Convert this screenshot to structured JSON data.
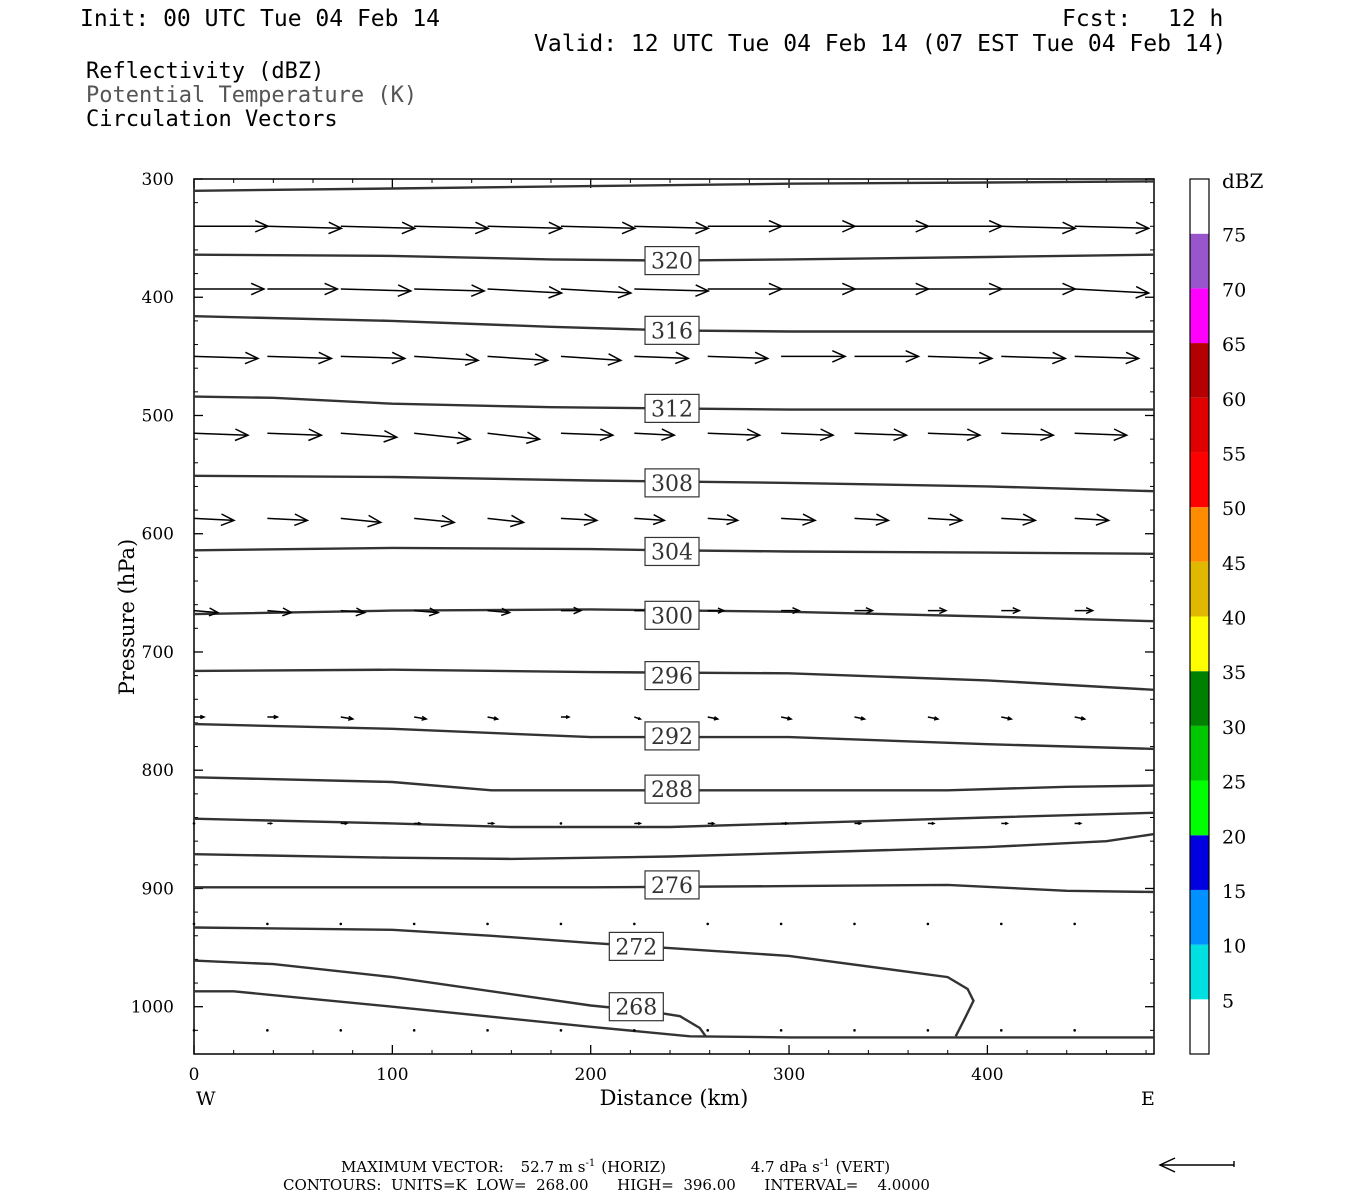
{
  "header": {
    "init": "Init: 00 UTC Tue 04 Feb 14",
    "fcst_label": "Fcst:",
    "fcst_value": "12 h",
    "valid": "Valid: 12 UTC Tue 04 Feb 14 (07 EST Tue 04 Feb 14)"
  },
  "fields": [
    "Reflectivity (dBZ)",
    "Potential Temperature (K)",
    "Circulation Vectors"
  ],
  "colors": {
    "text": "#000000",
    "theta_label": "#555555",
    "contour": "#333333"
  },
  "chart_data": {
    "type": "cross-section",
    "xlabel": "Distance (km)",
    "ylabel": "Pressure (hPa)",
    "xlim": [
      0,
      484
    ],
    "ylim": [
      1040,
      300
    ],
    "x_ticks": [
      0,
      100,
      200,
      300,
      400
    ],
    "y_ticks": [
      300,
      400,
      500,
      600,
      700,
      800,
      900,
      1000
    ],
    "x_end_labels": {
      "left": "W",
      "right": "E"
    },
    "theta_contours": [
      {
        "label": "",
        "points": [
          [
            0,
            310
          ],
          [
            100,
            308
          ],
          [
            200,
            306
          ],
          [
            300,
            304
          ],
          [
            400,
            303
          ],
          [
            484,
            302
          ]
        ]
      },
      {
        "label": "320",
        "points": [
          [
            0,
            364
          ],
          [
            100,
            365
          ],
          [
            180,
            368
          ],
          [
            240,
            369
          ],
          [
            300,
            368
          ],
          [
            400,
            366
          ],
          [
            484,
            364
          ]
        ]
      },
      {
        "label": "316",
        "points": [
          [
            0,
            416
          ],
          [
            100,
            420
          ],
          [
            180,
            425
          ],
          [
            240,
            428
          ],
          [
            300,
            429
          ],
          [
            400,
            429
          ],
          [
            484,
            429
          ]
        ]
      },
      {
        "label": "312",
        "points": [
          [
            0,
            484
          ],
          [
            40,
            485
          ],
          [
            100,
            490
          ],
          [
            180,
            493
          ],
          [
            240,
            494
          ],
          [
            300,
            495
          ],
          [
            400,
            495
          ],
          [
            484,
            495
          ]
        ]
      },
      {
        "label": "308",
        "points": [
          [
            0,
            551
          ],
          [
            100,
            552
          ],
          [
            200,
            555
          ],
          [
            300,
            557
          ],
          [
            400,
            560
          ],
          [
            484,
            564
          ]
        ]
      },
      {
        "label": "304",
        "points": [
          [
            0,
            614
          ],
          [
            100,
            612
          ],
          [
            200,
            613
          ],
          [
            240,
            614
          ],
          [
            300,
            615
          ],
          [
            400,
            616
          ],
          [
            484,
            617
          ]
        ]
      },
      {
        "label": "300",
        "points": [
          [
            0,
            668
          ],
          [
            100,
            665
          ],
          [
            200,
            664
          ],
          [
            300,
            666
          ],
          [
            400,
            670
          ],
          [
            484,
            674
          ]
        ]
      },
      {
        "label": "296",
        "points": [
          [
            0,
            716
          ],
          [
            100,
            715
          ],
          [
            200,
            717
          ],
          [
            300,
            718
          ],
          [
            400,
            724
          ],
          [
            484,
            732
          ]
        ]
      },
      {
        "label": "292",
        "points": [
          [
            0,
            761
          ],
          [
            100,
            765
          ],
          [
            200,
            772
          ],
          [
            300,
            772
          ],
          [
            400,
            778
          ],
          [
            484,
            782
          ]
        ]
      },
      {
        "label": "288",
        "points": [
          [
            0,
            806
          ],
          [
            100,
            810
          ],
          [
            150,
            817
          ],
          [
            200,
            817
          ],
          [
            300,
            817
          ],
          [
            380,
            817
          ],
          [
            440,
            814
          ],
          [
            484,
            813
          ]
        ]
      },
      {
        "label": "",
        "points": [
          [
            0,
            841
          ],
          [
            100,
            845
          ],
          [
            160,
            848
          ],
          [
            240,
            848
          ],
          [
            300,
            845
          ],
          [
            400,
            840
          ],
          [
            484,
            836
          ]
        ]
      },
      {
        "label": "",
        "points": [
          [
            0,
            871
          ],
          [
            100,
            874
          ],
          [
            160,
            875
          ],
          [
            240,
            873
          ],
          [
            300,
            870
          ],
          [
            400,
            865
          ],
          [
            460,
            860
          ],
          [
            484,
            854
          ]
        ]
      },
      {
        "label": "276",
        "points": [
          [
            0,
            899
          ],
          [
            100,
            899
          ],
          [
            200,
            899
          ],
          [
            300,
            898
          ],
          [
            380,
            897
          ],
          [
            440,
            902
          ],
          [
            484,
            903
          ]
        ]
      },
      {
        "label": "272",
        "points": [
          [
            0,
            933
          ],
          [
            100,
            935
          ],
          [
            150,
            940
          ],
          [
            200,
            946
          ],
          [
            300,
            957
          ],
          [
            380,
            975
          ],
          [
            390,
            985
          ],
          [
            393,
            995
          ],
          [
            388,
            1012
          ],
          [
            384,
            1025
          ]
        ]
      },
      {
        "label": "268",
        "points": [
          [
            0,
            961
          ],
          [
            40,
            964
          ],
          [
            100,
            975
          ],
          [
            200,
            999
          ],
          [
            230,
            1004
          ],
          [
            245,
            1008
          ],
          [
            255,
            1018
          ],
          [
            258,
            1025
          ]
        ]
      },
      {
        "label": "",
        "points": [
          [
            0,
            987
          ],
          [
            20,
            987
          ],
          [
            100,
            1000
          ],
          [
            200,
            1017
          ],
          [
            250,
            1025
          ],
          [
            300,
            1026
          ],
          [
            400,
            1026
          ],
          [
            484,
            1026
          ]
        ]
      }
    ],
    "contour_label_positions": {
      "320": [
        241,
        369
      ],
      "316": [
        241,
        428
      ],
      "312": [
        241,
        494
      ],
      "308": [
        241,
        557
      ],
      "304": [
        241,
        615
      ],
      "300": [
        241,
        669
      ],
      "296": [
        241,
        720
      ],
      "292": [
        241,
        771
      ],
      "288": [
        241,
        816
      ],
      "276": [
        241,
        897
      ],
      "272": [
        223,
        949
      ],
      "268": [
        223,
        1000
      ]
    },
    "vector_rows": [
      {
        "p": 340,
        "x": [
          0,
          37,
          74,
          111,
          148,
          185,
          222,
          259,
          296,
          333,
          370,
          407,
          444
        ],
        "dx": [
          37,
          37,
          37,
          37,
          37,
          37,
          37,
          37,
          37,
          37,
          37,
          37,
          37
        ],
        "dp": [
          0,
          1,
          1,
          1,
          1,
          1,
          1,
          0,
          0,
          0,
          0,
          1,
          1
        ]
      },
      {
        "p": 393,
        "x": [
          0,
          37,
          74,
          111,
          148,
          185,
          222,
          259,
          296,
          333,
          370,
          407,
          444
        ],
        "dx": [
          35,
          35,
          35,
          35,
          37,
          35,
          37,
          37,
          37,
          37,
          37,
          37,
          37
        ],
        "dp": [
          0,
          0,
          1,
          1,
          2,
          2,
          1,
          0,
          0,
          0,
          0,
          0,
          2
        ]
      },
      {
        "p": 450,
        "x": [
          0,
          37,
          74,
          111,
          148,
          185,
          222,
          259,
          296,
          333,
          370,
          407,
          444
        ],
        "dx": [
          32,
          32,
          32,
          32,
          30,
          30,
          27,
          30,
          32,
          32,
          32,
          32,
          32
        ],
        "dp": [
          1,
          1,
          1,
          2,
          2,
          2,
          1,
          1,
          0,
          0,
          1,
          1,
          1
        ]
      },
      {
        "p": 515,
        "x": [
          0,
          37,
          74,
          111,
          148,
          185,
          222,
          259,
          296,
          333,
          370,
          407,
          444
        ],
        "dx": [
          27,
          27,
          28,
          28,
          26,
          26,
          20,
          26,
          26,
          26,
          26,
          26,
          26
        ],
        "dp": [
          1,
          1,
          2,
          3,
          3,
          1,
          1,
          1,
          1,
          1,
          1,
          1,
          1
        ]
      },
      {
        "p": 587,
        "x": [
          0,
          37,
          74,
          111,
          148,
          185,
          222,
          259,
          296,
          333,
          370,
          407,
          444
        ],
        "dx": [
          20,
          20,
          20,
          20,
          18,
          18,
          15,
          15,
          17,
          17,
          17,
          17,
          17
        ],
        "dp": [
          1,
          1,
          2,
          2,
          2,
          1,
          1,
          1,
          1,
          1,
          1,
          1,
          1
        ]
      },
      {
        "p": 665,
        "x": [
          0,
          37,
          74,
          111,
          148,
          185,
          222,
          259,
          296,
          333,
          370,
          407,
          444
        ],
        "dx": [
          12,
          12,
          12,
          12,
          11,
          10,
          8,
          8,
          9,
          9,
          9,
          9,
          9
        ],
        "dp": [
          1,
          1,
          1,
          1,
          1,
          0,
          0,
          0,
          0,
          0,
          0,
          0,
          0
        ]
      },
      {
        "p": 755,
        "x": [
          0,
          37,
          74,
          111,
          148,
          185,
          222,
          259,
          296,
          333,
          370,
          407,
          444
        ],
        "dx": [
          5,
          5,
          6,
          6,
          5,
          4,
          3,
          5,
          5,
          5,
          5,
          5,
          5
        ],
        "dp": [
          0,
          0,
          1,
          1,
          1,
          0,
          1,
          1,
          1,
          1,
          1,
          1,
          1
        ]
      },
      {
        "p": 845,
        "x": [
          0,
          37,
          74,
          111,
          148,
          185,
          222,
          259,
          296,
          333,
          370,
          407,
          444
        ],
        "dx": [
          1,
          2,
          3,
          3,
          3,
          0,
          3,
          3,
          3,
          3,
          3,
          3,
          3
        ],
        "dp": [
          0,
          0,
          0,
          0,
          0,
          0,
          0,
          0,
          0,
          0,
          0,
          0,
          0
        ]
      },
      {
        "p": 930,
        "x": [
          0,
          37,
          74,
          111,
          148,
          185,
          222,
          259,
          296,
          333,
          370,
          407,
          444
        ],
        "dx": [
          0,
          1,
          1,
          1,
          0,
          0,
          0,
          0,
          0,
          0,
          0,
          0,
          1
        ],
        "dp": [
          0,
          0,
          0,
          0,
          0,
          0,
          0,
          0,
          0,
          0,
          0,
          0,
          0
        ]
      },
      {
        "p": 1020,
        "x": [
          0,
          37,
          74,
          111,
          148,
          185,
          222,
          259,
          296,
          333,
          370,
          407,
          444
        ],
        "dx": [
          0,
          1,
          1,
          1,
          0,
          0,
          0,
          0,
          0,
          0,
          0,
          0,
          1
        ],
        "dp": [
          0,
          0,
          0,
          0,
          0,
          0,
          0,
          0,
          0,
          0,
          0,
          0,
          0
        ]
      }
    ],
    "colorbar": {
      "title": "dBZ",
      "levels": [
        "5",
        "10",
        "15",
        "20",
        "25",
        "30",
        "35",
        "40",
        "45",
        "50",
        "55",
        "60",
        "65",
        "70",
        "75"
      ],
      "colors": [
        "#ffffff",
        "#00e0e0",
        "#0090ff",
        "#0000e0",
        "#00ff00",
        "#00c800",
        "#008000",
        "#ffff00",
        "#e0b800",
        "#ff8c00",
        "#ff0000",
        "#e00000",
        "#b40000",
        "#ff00ff",
        "#9955cc",
        "#ffffff"
      ]
    }
  },
  "footer": {
    "max_vector_label": "MAXIMUM VECTOR:",
    "horiz_value": "52.7 m s",
    "horiz_sup": "-1",
    "horiz_tag": "(HORIZ)",
    "vert_value": "4.7 dPa s",
    "vert_sup": "-1",
    "vert_tag": "(VERT)",
    "contours_line": "CONTOURS:  UNITS=K  LOW=  268.00      HIGH=  396.00      INTERVAL=    4.0000"
  }
}
